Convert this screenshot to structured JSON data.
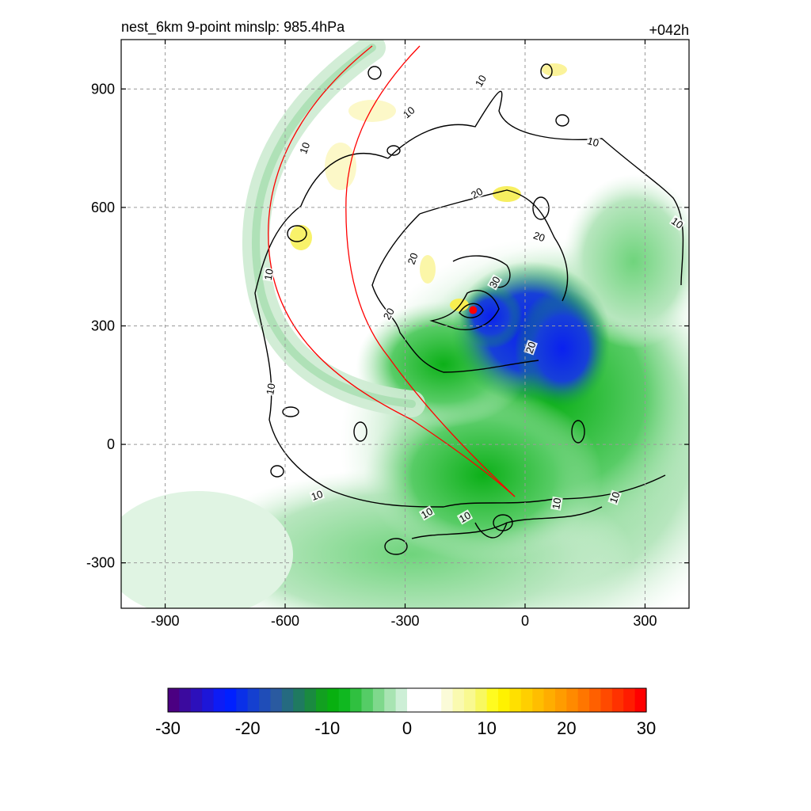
{
  "chart_data": {
    "type": "heatmap",
    "title_left": "nest_6km  9-point minslp: 985.4hPa",
    "title_right": "+042h",
    "x_ticks": [
      -900,
      -600,
      -300,
      0,
      300
    ],
    "y_ticks": [
      900,
      600,
      300,
      0,
      -300
    ],
    "xlim": [
      -1010,
      410
    ],
    "ylim": [
      -415,
      1025
    ],
    "grid": true,
    "colorbar": {
      "ticks": [
        -30,
        -20,
        -10,
        0,
        10,
        20,
        30
      ],
      "range": [
        -30,
        30
      ],
      "colors": [
        "#4b0082",
        "#3b0a9e",
        "#2c10bb",
        "#1d16d8",
        "#0d1cf5",
        "#0020ff",
        "#0a30e8",
        "#1540d0",
        "#1f4db8",
        "#2a5aa0",
        "#256a80",
        "#1f7a60",
        "#1a8a40",
        "#12a020",
        "#08b010",
        "#10b820",
        "#30c040",
        "#55cc66",
        "#7fd88c",
        "#a8e4b2",
        "#cdefd6",
        "#ffffff",
        "#ffffff",
        "#ffffff",
        "#fbfbd8",
        "#fafab0",
        "#f9f990",
        "#f8f860",
        "#fffb20",
        "#fff200",
        "#ffe000",
        "#ffcf00",
        "#ffbe00",
        "#ffad00",
        "#ff9c00",
        "#ff8a00",
        "#ff7600",
        "#ff6000",
        "#ff4a00",
        "#ff3200",
        "#ff1c00",
        "#ff0000"
      ]
    },
    "contour_labels": [
      {
        "text": "10",
        "x": -110,
        "y": 920,
        "rot": -60
      },
      {
        "text": "10",
        "x": -550,
        "y": 750,
        "rot": -70
      },
      {
        "text": "10",
        "x": -290,
        "y": 840,
        "rot": -40
      },
      {
        "text": "10",
        "x": 170,
        "y": 765,
        "rot": 15
      },
      {
        "text": "10",
        "x": 380,
        "y": 560,
        "rot": 35
      },
      {
        "text": "10",
        "x": -640,
        "y": 430,
        "rot": -80
      },
      {
        "text": "10",
        "x": -635,
        "y": 140,
        "rot": -80
      },
      {
        "text": "10",
        "x": -520,
        "y": -130,
        "rot": -20
      },
      {
        "text": "10",
        "x": -245,
        "y": -175,
        "rot": -30
      },
      {
        "text": "10",
        "x": -150,
        "y": -185,
        "rot": -30
      },
      {
        "text": "10",
        "x": 80,
        "y": -150,
        "rot": -80
      },
      {
        "text": "10",
        "x": 225,
        "y": -135,
        "rot": -70
      },
      {
        "text": "20",
        "x": -120,
        "y": 635,
        "rot": -30
      },
      {
        "text": "20",
        "x": 35,
        "y": 525,
        "rot": 20
      },
      {
        "text": "20",
        "x": -280,
        "y": 470,
        "rot": -70
      },
      {
        "text": "20",
        "x": -340,
        "y": 330,
        "rot": -60
      },
      {
        "text": "20",
        "x": 15,
        "y": 245,
        "rot": -70
      },
      {
        "text": "30",
        "x": -75,
        "y": 410,
        "rot": -60
      }
    ],
    "storm_center": {
      "x": -130,
      "y": 340
    }
  }
}
